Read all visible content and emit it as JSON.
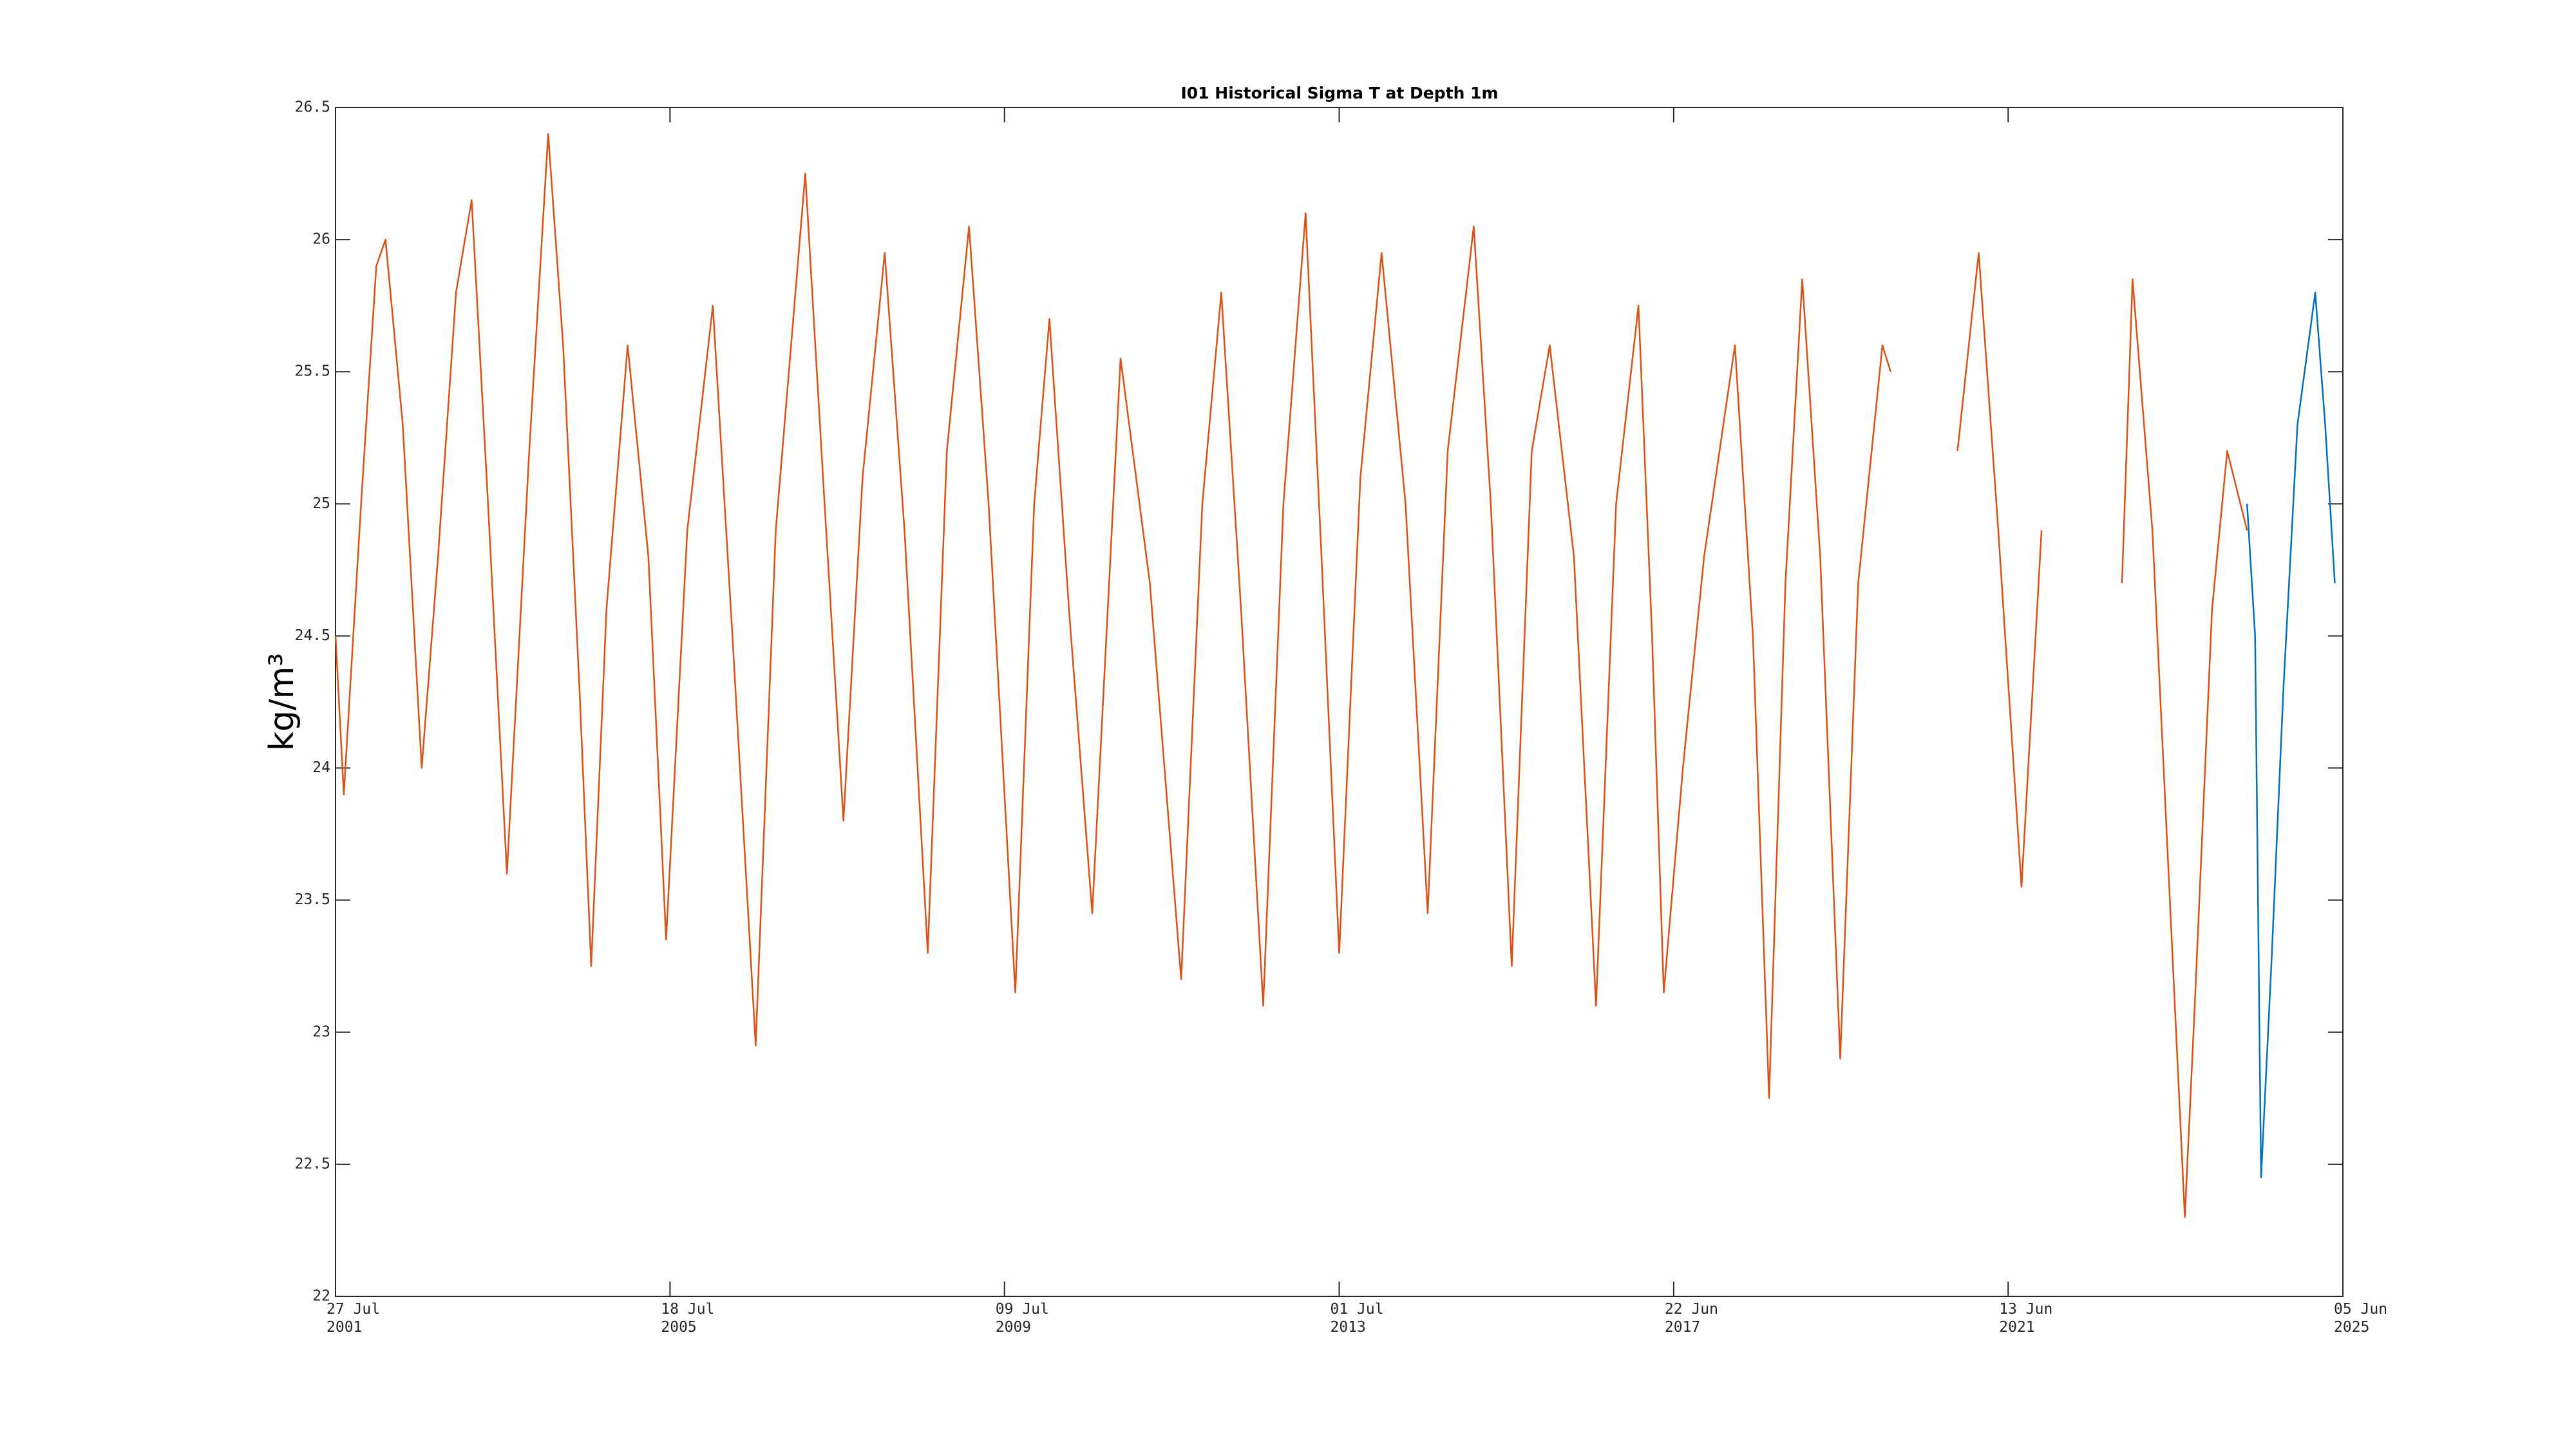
{
  "chart_data": {
    "type": "line",
    "title": "I01 Historical Sigma T at Depth 1m",
    "y_label": "kg/m³",
    "xlim": [
      "2001-07-27",
      "2025-06-05"
    ],
    "xticks": [
      {
        "value": "2001-07-27",
        "label": "27 Jul\n2001"
      },
      {
        "value": "2005-07-18",
        "label": "18 Jul\n2005"
      },
      {
        "value": "2009-07-09",
        "label": "09 Jul\n2009"
      },
      {
        "value": "2013-07-01",
        "label": "01 Jul\n2013"
      },
      {
        "value": "2017-06-22",
        "label": "22 Jun\n2017"
      },
      {
        "value": "2021-06-13",
        "label": "13 Jun\n2021"
      },
      {
        "value": "2025-06-05",
        "label": "05 Jun\n2025"
      }
    ],
    "ylim": [
      22,
      26.5
    ],
    "yticks": [
      22,
      22.5,
      23,
      23.5,
      24,
      24.5,
      25,
      25.5,
      26,
      26.5
    ],
    "grid": false,
    "series": [
      {
        "color": "#d95319",
        "x": [
          "2001-07-27",
          "2001-09-01",
          "2001-11-15",
          "2002-01-20",
          "2002-03-01",
          "2002-05-15",
          "2002-08-05",
          "2002-10-15",
          "2003-01-01",
          "2003-03-10",
          "2003-05-20",
          "2003-08-10",
          "2003-11-15",
          "2004-02-05",
          "2004-04-10",
          "2004-06-20",
          "2004-08-10",
          "2004-10-15",
          "2005-01-15",
          "2005-04-15",
          "2005-07-01",
          "2005-10-01",
          "2006-01-20",
          "2006-04-15",
          "2006-07-25",
          "2006-10-20",
          "2007-02-25",
          "2007-05-20",
          "2007-08-10",
          "2007-11-01",
          "2008-02-05",
          "2008-05-01",
          "2008-08-10",
          "2008-11-01",
          "2009-02-05",
          "2009-05-01",
          "2009-08-25",
          "2009-11-15",
          "2010-01-20",
          "2010-04-15",
          "2010-07-25",
          "2010-11-25",
          "2011-04-01",
          "2011-08-15",
          "2011-11-15",
          "2012-02-05",
          "2012-05-01",
          "2012-08-05",
          "2012-11-01",
          "2013-02-05",
          "2013-04-15",
          "2013-07-01",
          "2013-10-01",
          "2014-01-01",
          "2014-04-15",
          "2014-07-20",
          "2014-10-15",
          "2015-02-05",
          "2015-04-20",
          "2015-07-20",
          "2015-10-15",
          "2016-01-01",
          "2016-04-15",
          "2016-07-20",
          "2016-10-15",
          "2017-01-20",
          "2017-03-20",
          "2017-05-10",
          "2017-08-01",
          "2017-11-01",
          "2018-03-15",
          "2018-06-01",
          "2018-08-10",
          "2018-10-20",
          "2019-01-01",
          "2019-03-20",
          "2019-06-15",
          "2019-09-01",
          "2019-12-15",
          "2020-01-20",
          "2020-06-01",
          "2020-11-05",
          "2021-02-05",
          "2021-05-01",
          "2021-08-10",
          "2021-11-05",
          "2022-04-01",
          "2022-10-20",
          "2022-12-05",
          "2023-03-01",
          "2023-07-20",
          "2023-09-01",
          "2023-11-15",
          "2024-01-20",
          "2024-04-15"
        ],
        "values": [
          24.5,
          23.9,
          25.0,
          25.9,
          26.0,
          25.3,
          24.0,
          24.8,
          25.8,
          26.15,
          25.0,
          23.6,
          25.2,
          26.4,
          25.6,
          24.3,
          23.25,
          24.6,
          25.6,
          24.8,
          23.35,
          24.9,
          25.75,
          24.5,
          22.95,
          24.9,
          26.25,
          25.0,
          23.8,
          25.1,
          25.95,
          24.9,
          23.3,
          25.2,
          26.05,
          25.0,
          23.15,
          25.0,
          25.7,
          24.6,
          23.45,
          25.55,
          24.7,
          23.2,
          25.0,
          25.8,
          24.6,
          23.1,
          25.0,
          26.1,
          24.8,
          23.3,
          25.1,
          25.95,
          25.0,
          23.45,
          25.2,
          26.05,
          25.0,
          23.25,
          25.2,
          25.6,
          24.8,
          23.1,
          25.0,
          25.75,
          24.5,
          23.15,
          24.0,
          24.8,
          25.6,
          24.5,
          22.75,
          24.7,
          25.85,
          24.8,
          22.9,
          24.7,
          25.6,
          25.5,
          null,
          25.2,
          25.95,
          24.9,
          23.55,
          24.9,
          null,
          24.7,
          25.85,
          24.9,
          22.3,
          23.1,
          24.6,
          25.2,
          24.9
        ]
      },
      {
        "color": "#0072bd",
        "x": [
          "2024-04-15",
          "2024-05-20",
          "2024-06-15",
          "2024-08-01",
          "2024-09-20",
          "2024-11-20",
          "2025-02-05",
          "2025-03-20",
          "2025-05-01"
        ],
        "values": [
          25.0,
          24.5,
          22.45,
          23.3,
          24.3,
          25.3,
          25.8,
          25.3,
          24.7
        ]
      }
    ]
  }
}
